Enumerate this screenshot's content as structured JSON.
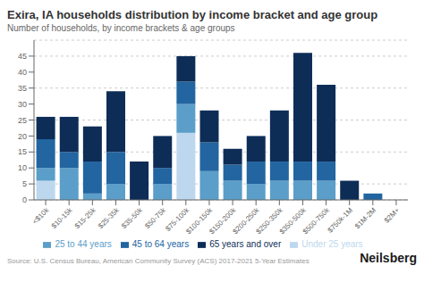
{
  "chart_data": {
    "type": "bar",
    "stacked": true,
    "title": "Exira, IA households distribution by income bracket and age group",
    "subtitle": "Number of households, by income brackets & age groups",
    "annotations": [
      "Source: U.S. Census Bureau, American Community Survey (ACS) 2017-2021 5-Year Estimates",
      "Neilsberg"
    ],
    "categories": [
      "<$10k",
      "$10-15k",
      "$15-25k",
      "$25-35k",
      "$35-50k",
      "$50-75k",
      "$75-100k",
      "$100-150k",
      "$150-200k",
      "$200-250k",
      "$250-350k",
      "$350-500k",
      "$500-750k",
      "$750k-1M",
      "$1M-2M",
      "$2M+"
    ],
    "series": [
      {
        "name": "Under 25 years",
        "color": "#bdd7ee",
        "values": [
          6,
          0,
          0,
          0,
          0,
          0,
          21,
          0,
          0,
          0,
          0,
          0,
          0,
          0,
          0,
          0
        ]
      },
      {
        "name": "25 to 44 years",
        "color": "#5b9ec9",
        "values": [
          4,
          10,
          2,
          5,
          0,
          5,
          9,
          9,
          6,
          5,
          6,
          6,
          6,
          0,
          0,
          0
        ]
      },
      {
        "name": "45 to 64 years",
        "color": "#2265a0",
        "values": [
          9,
          5,
          10,
          10,
          0,
          5,
          7,
          9,
          5,
          7,
          6,
          6,
          6,
          0,
          2,
          0
        ]
      },
      {
        "name": "65 years and over",
        "color": "#0d2d57",
        "values": [
          7,
          11,
          11,
          19,
          12,
          10,
          8,
          10,
          5,
          8,
          16,
          34,
          24,
          6,
          0,
          0
        ]
      }
    ],
    "ylim": [
      0,
      50
    ],
    "yticks": [
      0,
      5,
      10,
      15,
      20,
      25,
      30,
      35,
      40,
      45
    ],
    "grid": true,
    "legend": "bottom"
  }
}
